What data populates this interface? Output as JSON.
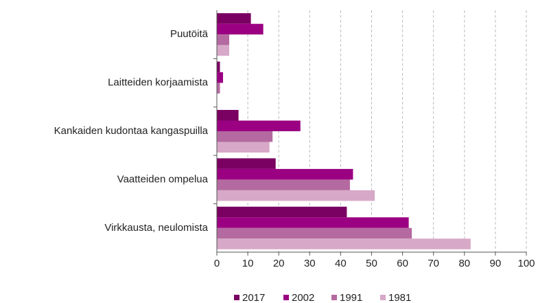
{
  "chart_data": {
    "type": "hbar",
    "categories": [
      "Puutöitä",
      "Laitteiden korjaamista",
      "Kankaiden kudontaa kangaspuilla",
      "Vaatteiden ompelua",
      "Virkkausta, neulomista"
    ],
    "series": [
      {
        "name": "2017",
        "color": "#7a0062",
        "values": [
          11,
          1,
          7,
          19,
          42
        ]
      },
      {
        "name": "2002",
        "color": "#9b0082",
        "values": [
          15,
          2,
          27,
          44,
          62
        ]
      },
      {
        "name": "1991",
        "color": "#b46aa0",
        "values": [
          4,
          1,
          18,
          43,
          63
        ]
      },
      {
        "name": "1981",
        "color": "#d7a8c7",
        "values": [
          4,
          0,
          17,
          51,
          82
        ]
      }
    ],
    "xlim": [
      0,
      100
    ],
    "xticks": [
      0,
      10,
      20,
      30,
      40,
      50,
      60,
      70,
      80,
      90,
      100
    ],
    "grid": true,
    "legend": "bottom"
  }
}
